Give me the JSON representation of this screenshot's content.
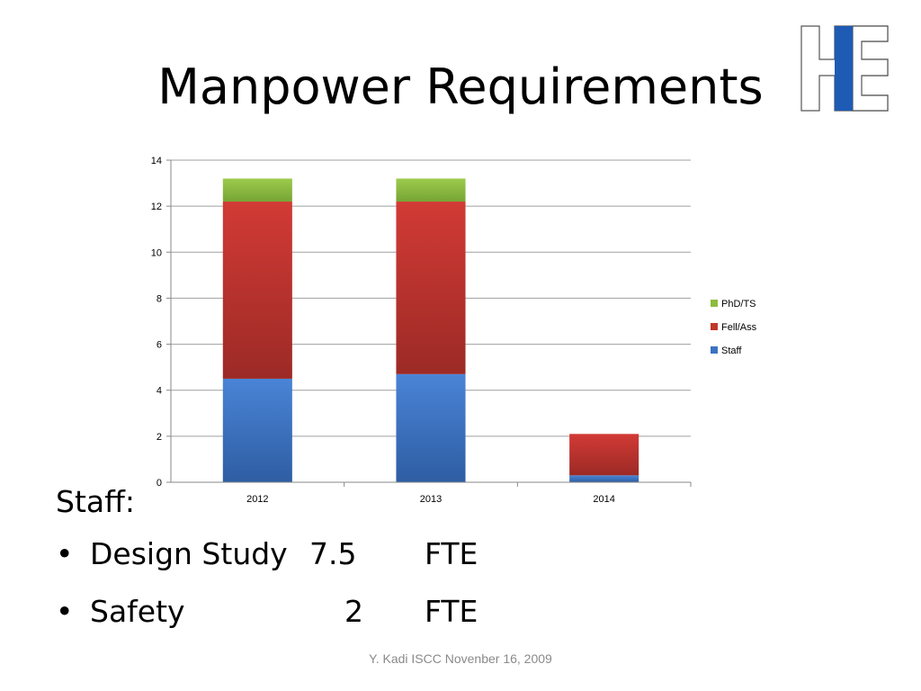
{
  "slide": {
    "title": "Manpower Requirements",
    "footer": "Y. Kadi   ISCC Novenber 16, 2009",
    "staff_heading": "Staff:",
    "bullets": [
      {
        "label": "Design Study",
        "value": "7.5",
        "unit": "FTE"
      },
      {
        "label": "Safety",
        "value": "2",
        "unit": "FTE"
      }
    ],
    "bullet_symbol": "•"
  },
  "colors": {
    "staff": "#3a72c4",
    "fell_ass": "#c0392b",
    "phd_ts": "#8dbb3f",
    "gridline": "#a0a0a0",
    "logo_blue": "#1d5bb5"
  },
  "chart_data": {
    "type": "bar",
    "stacked": true,
    "categories": [
      "2012",
      "2013",
      "2014"
    ],
    "series": [
      {
        "name": "Staff",
        "values": [
          4.5,
          4.7,
          0.3
        ]
      },
      {
        "name": "Fell/Ass",
        "values": [
          7.7,
          7.5,
          1.8
        ]
      },
      {
        "name": "PhD/TS",
        "values": [
          1.0,
          1.0,
          0
        ]
      }
    ],
    "ylim": [
      0,
      14
    ],
    "yticks": [
      0,
      2,
      4,
      6,
      8,
      10,
      12,
      14
    ],
    "grid": true,
    "legend": "right"
  }
}
